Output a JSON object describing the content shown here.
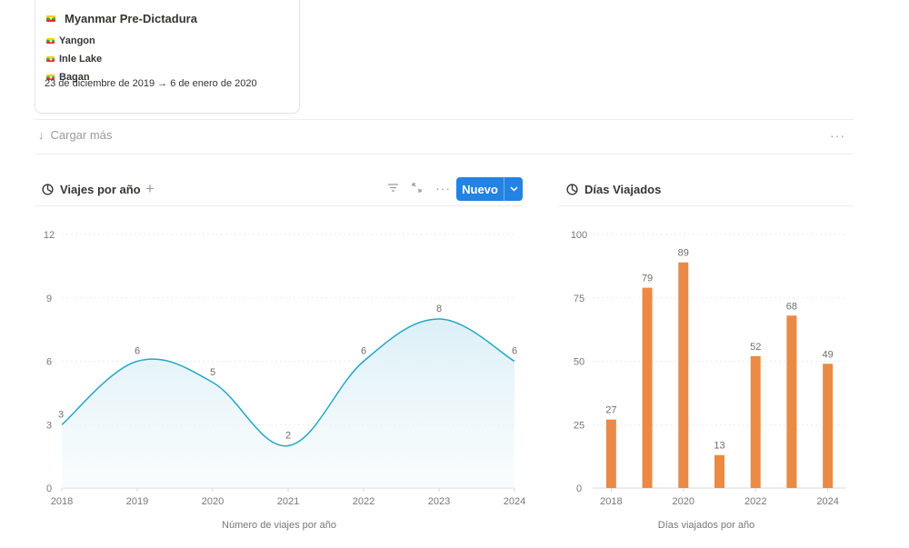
{
  "card": {
    "title": "Myanmar Pre-Dictadura",
    "destinations": [
      "Yangon",
      "Inle Lake",
      "Bagan"
    ],
    "dates": "23 de diciembre de 2019 → 6 de enero de 2020"
  },
  "load_more": {
    "label": "Cargar más",
    "more": "···"
  },
  "toolbar": {
    "new_label": "Nuevo",
    "more": "···"
  },
  "colors": {
    "line": "#22a7c8",
    "bar": "#ea8a45",
    "accent": "#2383e2"
  },
  "chart_data": [
    {
      "type": "line",
      "title": "Viajes por año",
      "xlabel": "Número de viajes por año",
      "ylabel": "",
      "x": [
        "2018",
        "2019",
        "2020",
        "2021",
        "2022",
        "2023",
        "2024"
      ],
      "values": [
        3,
        6,
        5,
        2,
        6,
        8,
        6
      ],
      "ylim": [
        0,
        12
      ],
      "yticks": [
        0,
        3,
        6,
        9,
        12
      ],
      "grid": true,
      "smooth": true,
      "area_fill": true
    },
    {
      "type": "bar",
      "title": "Días Viajados",
      "xlabel": "Días viajados por año",
      "ylabel": "",
      "categories": [
        "2018",
        "2019",
        "2020",
        "2021",
        "2022",
        "2023",
        "2024"
      ],
      "values": [
        27,
        79,
        89,
        13,
        52,
        68,
        49
      ],
      "xticks_shown": [
        "2018",
        "2020",
        "2022",
        "2024"
      ],
      "ylim": [
        0,
        100
      ],
      "yticks": [
        0,
        25,
        50,
        75,
        100
      ],
      "grid": true
    }
  ]
}
